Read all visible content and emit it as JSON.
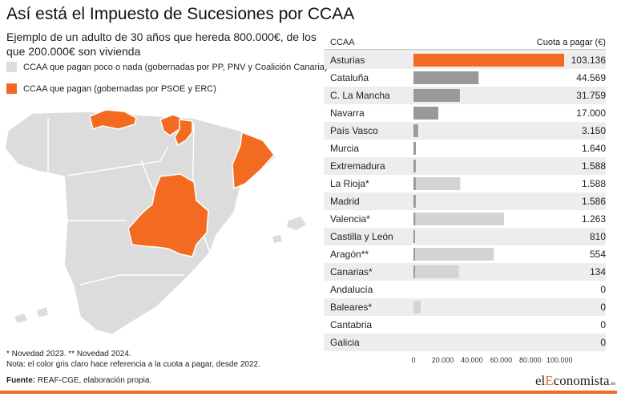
{
  "header": {
    "title": "Así está el Impuesto de Sucesiones por CCAA",
    "subtitle": "Ejemplo de un adulto de 30 años que hereda 800.000€, de los que 200.000€ son vivienda"
  },
  "legend": {
    "gray_label": "CCAA que pagan poco o nada (gobernadas por PP, PNV y Coalición Canaria)",
    "orange_label": "CCAA que pagan (gobernadas por PSOE y ERC)"
  },
  "colors": {
    "orange": "#f26b21",
    "bar_gray": "#999999",
    "bar_lightgray": "#d4d4d4",
    "row_band": "#ededed",
    "map_gray": "#dcdcdc"
  },
  "chart_data": {
    "type": "bar",
    "orientation": "horizontal",
    "column_headers": [
      "CCAA",
      "Cuota a pagar (€)"
    ],
    "categories": [
      "Asturias",
      "Cataluña",
      "C. La Mancha",
      "Navarra",
      "País Vasco",
      "Murcia",
      "Extremadura",
      "La Rioja*",
      "Madrid",
      "Valencia*",
      "Castilla y León",
      "Aragón**",
      "Canarias*",
      "Andalucía",
      "Baleares*",
      "Cantabria",
      "Galicia"
    ],
    "values": [
      103136,
      44569,
      31759,
      17000,
      3150,
      1640,
      1588,
      1588,
      1586,
      1263,
      810,
      554,
      134,
      0,
      0,
      0,
      0
    ],
    "value_labels": [
      "103.136",
      "44.569",
      "31.759",
      "17.000",
      "3.150",
      "1.640",
      "1.588",
      "1.588",
      "1.586",
      "1.263",
      "810",
      "554",
      "134",
      "0",
      "0",
      "0",
      "0"
    ],
    "values_since_2022": [
      null,
      null,
      null,
      null,
      null,
      null,
      null,
      32000,
      null,
      62000,
      null,
      55000,
      31000,
      null,
      5000,
      null,
      null
    ],
    "bar_color_keys": [
      "orange",
      "bar_gray",
      "bar_gray",
      "bar_gray",
      "bar_gray",
      "bar_gray",
      "bar_gray",
      "bar_gray",
      "bar_gray",
      "bar_gray",
      "bar_gray",
      "bar_gray",
      "bar_gray",
      "bar_gray",
      "bar_gray",
      "bar_gray",
      "bar_gray"
    ],
    "xlim": [
      0,
      103136
    ],
    "xticks": [
      0,
      20000,
      40000,
      60000,
      80000,
      100000
    ],
    "xtick_labels": [
      "0",
      "20.000",
      "40.000",
      "60.000",
      "80.000",
      "100.000"
    ],
    "grid": false
  },
  "map": {
    "orange_regions": [
      "Asturias",
      "País Vasco",
      "Navarra",
      "Cataluña",
      "Castilla-La Mancha"
    ],
    "gray_regions": [
      "Galicia",
      "Cantabria",
      "Castilla y León",
      "La Rioja",
      "Aragón",
      "Madrid",
      "Extremadura",
      "Valencia",
      "Murcia",
      "Andalucía",
      "Baleares",
      "Canarias"
    ]
  },
  "footer": {
    "note1": "* Novedad 2023. ** Novedad 2024.",
    "note2": "Nota: el color gris claro hace referencia a la cuota a pagar, desde 2022.",
    "source_label": "Fuente:",
    "source_text": "REAF-CGE, elaboración propia.",
    "logo_pre": "el",
    "logo_accent": "E",
    "logo_post": "conomista",
    "logo_suffix": ".es"
  }
}
